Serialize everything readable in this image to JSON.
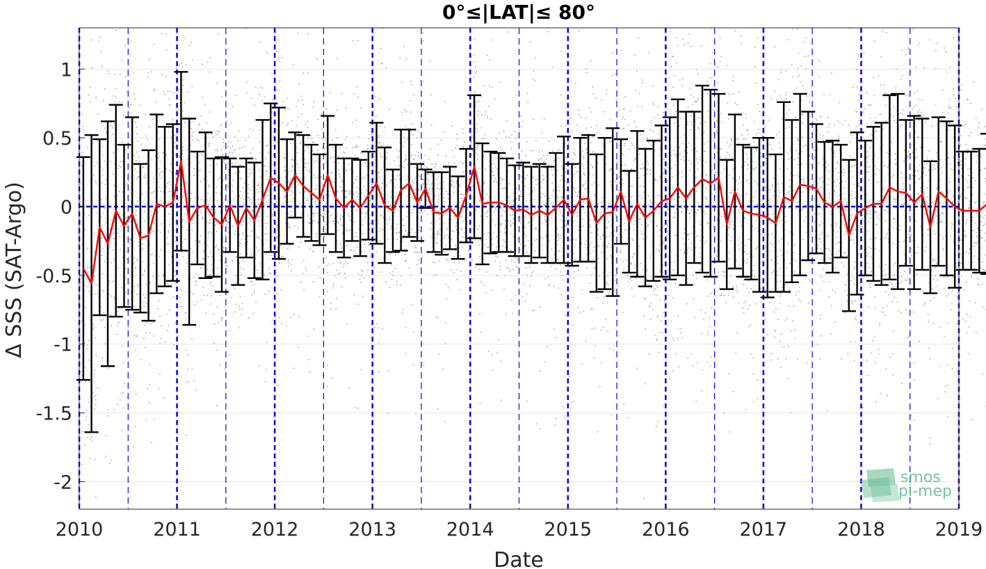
{
  "chart_data": {
    "type": "line",
    "title": "0°≤|LAT|≤ 80°",
    "xlabel": "Date",
    "ylabel": "Δ SSS (SAT-Argo)",
    "xlim": [
      2010.0,
      2019.0
    ],
    "ylim": [
      -2.2,
      1.3
    ],
    "x_ticks": [
      "2010",
      "2011",
      "2012",
      "2013",
      "2014",
      "2015",
      "2016",
      "2017",
      "2018",
      "2019"
    ],
    "y_ticks": [
      "1",
      "0.5",
      "0",
      "-0.5",
      "-1",
      "-1.5",
      "-2"
    ],
    "grid": true,
    "zero_line": 0,
    "year_lines": [
      2010,
      2011,
      2012,
      2013,
      2014,
      2015,
      2016,
      2017,
      2018,
      2019
    ],
    "half_year_lines": [
      2010.5,
      2011.5,
      2012.5,
      2013.5,
      2014.5,
      2015.5,
      2016.5,
      2017.5,
      2018.5
    ],
    "colors": {
      "mean_line": "#ff0000",
      "error_bars": "#000000",
      "scatter": "#8c8c8c",
      "guide_lines": "#0000ee",
      "grid": "#e6e6e6",
      "logo": "#5db98c"
    },
    "logo": {
      "line1": "smos",
      "line2": "pi-mep"
    },
    "series": [
      {
        "type": "line_with_error_bars",
        "x_start": 2010.0417,
        "x_step": 0.0833333,
        "mean": [
          -0.45,
          -0.56,
          -0.15,
          -0.27,
          -0.03,
          -0.14,
          -0.05,
          -0.23,
          -0.21,
          0.02,
          0.0,
          0.03,
          0.33,
          -0.11,
          -0.01,
          0.01,
          -0.08,
          -0.13,
          0.01,
          -0.14,
          -0.01,
          -0.1,
          0.05,
          0.21,
          0.17,
          0.11,
          0.23,
          0.15,
          0.1,
          0.05,
          0.23,
          0.06,
          -0.01,
          0.05,
          -0.01,
          0.08,
          0.17,
          0.01,
          -0.03,
          0.12,
          0.17,
          0.03,
          0.13,
          -0.04,
          -0.05,
          -0.01,
          -0.08,
          0.08,
          0.29,
          0.02,
          0.03,
          0.03,
          0.01,
          -0.03,
          -0.02,
          -0.06,
          -0.03,
          -0.06,
          -0.01,
          0.05,
          -0.06,
          0.05,
          0.06,
          -0.12,
          -0.05,
          -0.04,
          0.11,
          -0.11,
          0.02,
          -0.08,
          -0.03,
          0.04,
          0.06,
          0.14,
          0.06,
          0.14,
          0.2,
          0.17,
          0.21,
          -0.13,
          0.11,
          -0.03,
          -0.05,
          -0.06,
          -0.08,
          -0.12,
          0.07,
          0.04,
          0.16,
          0.15,
          0.13,
          0.03,
          0.0,
          0.04,
          -0.21,
          -0.05,
          -0.01,
          0.02,
          0.02,
          0.14,
          0.11,
          0.1,
          0.03,
          0.09,
          -0.15,
          0.11,
          0.06,
          0.0,
          -0.03,
          -0.03,
          -0.03,
          0.02,
          0.06
        ],
        "std": [
          0.81,
          1.08,
          0.64,
          0.89,
          0.77,
          0.59,
          0.7,
          0.54,
          0.62,
          0.65,
          0.58,
          0.57,
          0.65,
          0.75,
          0.41,
          0.53,
          0.43,
          0.49,
          0.34,
          0.43,
          0.36,
          0.42,
          0.58,
          0.54,
          0.55,
          0.38,
          0.31,
          0.37,
          0.35,
          0.33,
          0.43,
          0.39,
          0.36,
          0.3,
          0.35,
          0.32,
          0.44,
          0.42,
          0.3,
          0.44,
          0.39,
          0.28,
          0.14,
          0.29,
          0.3,
          0.3,
          0.3,
          0.34,
          0.52,
          0.44,
          0.37,
          0.36,
          0.34,
          0.33,
          0.34,
          0.35,
          0.34,
          0.35,
          0.4,
          0.46,
          0.37,
          0.45,
          0.46,
          0.5,
          0.55,
          0.61,
          0.38,
          0.37,
          0.53,
          0.5,
          0.51,
          0.55,
          0.59,
          0.64,
          0.63,
          0.55,
          0.68,
          0.68,
          0.61,
          0.47,
          0.56,
          0.48,
          0.48,
          0.56,
          0.58,
          0.5,
          0.69,
          0.59,
          0.66,
          0.54,
          0.47,
          0.44,
          0.48,
          0.41,
          0.55,
          0.59,
          0.49,
          0.56,
          0.59,
          0.67,
          0.71,
          0.53,
          0.63,
          0.55,
          0.48,
          0.54,
          0.56,
          0.59,
          0.43,
          0.43,
          0.45,
          0.51,
          0.54
        ]
      }
    ]
  }
}
